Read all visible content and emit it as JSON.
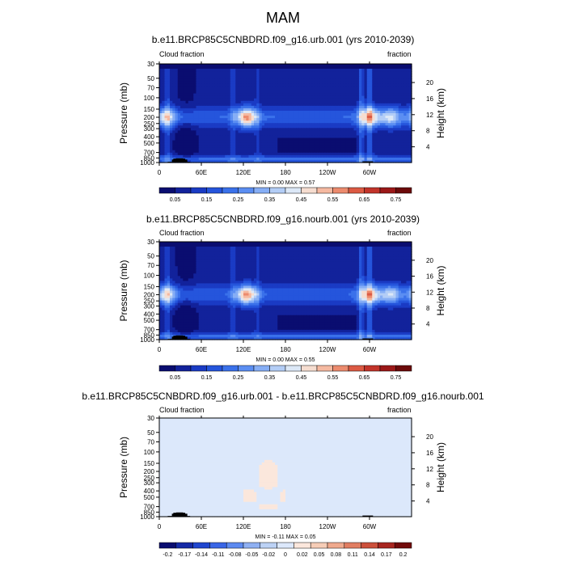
{
  "figure": {
    "title": "MAM"
  },
  "chart_data": [
    {
      "type": "heatmap",
      "title": "b.e11.BRCP85C5CNBDRD.f09_g16.urb.001 (yrs 2010-2039)",
      "left_label": "Cloud fraction",
      "right_label": "fraction",
      "ylabel": "Pressure (mb)",
      "ylabel_right": "Height (km)",
      "xlabel": "",
      "xticks": [
        "0",
        "60E",
        "120E",
        "180",
        "120W",
        "60W"
      ],
      "yticks": [
        "1000",
        "850",
        "700",
        "500",
        "400",
        "300",
        "250",
        "200",
        "150",
        "100",
        "70",
        "50",
        "30"
      ],
      "ylim": [
        1000,
        30
      ],
      "height_ticks": [
        "4",
        "8",
        "12",
        "16",
        "20"
      ],
      "stats": "MIN =   0.00  MAX =   0.57",
      "colorbar_labels": [
        "0.05",
        "0.15",
        "0.25",
        "0.35",
        "0.45",
        "0.55",
        "0.65",
        "0.75"
      ],
      "colorbar_range": [
        0,
        0.8
      ]
    },
    {
      "type": "heatmap",
      "title": "b.e11.BRCP85C5CNBDRD.f09_g16.nourb.001 (yrs 2010-2039)",
      "left_label": "Cloud fraction",
      "right_label": "fraction",
      "ylabel": "Pressure (mb)",
      "ylabel_right": "Height (km)",
      "xlabel": "",
      "xticks": [
        "0",
        "60E",
        "120E",
        "180",
        "120W",
        "60W"
      ],
      "yticks": [
        "1000",
        "850",
        "700",
        "500",
        "400",
        "300",
        "250",
        "200",
        "150",
        "100",
        "70",
        "50",
        "30"
      ],
      "ylim": [
        1000,
        30
      ],
      "height_ticks": [
        "4",
        "8",
        "12",
        "16",
        "20"
      ],
      "stats": "MIN =   0.00  MAX =   0.55",
      "colorbar_labels": [
        "0.05",
        "0.15",
        "0.25",
        "0.35",
        "0.45",
        "0.55",
        "0.65",
        "0.75"
      ],
      "colorbar_range": [
        0,
        0.8
      ]
    },
    {
      "type": "heatmap",
      "title": "b.e11.BRCP85C5CNBDRD.f09_g16.urb.001 - b.e11.BRCP85C5CNBDRD.f09_g16.nourb.001",
      "left_label": "Cloud fraction",
      "right_label": "fraction",
      "ylabel": "Pressure (mb)",
      "ylabel_right": "Height (km)",
      "xlabel": "",
      "xticks": [
        "0",
        "60E",
        "120E",
        "180",
        "120W",
        "60W"
      ],
      "yticks": [
        "1000",
        "850",
        "700",
        "500",
        "400",
        "300",
        "250",
        "200",
        "150",
        "100",
        "70",
        "50",
        "30"
      ],
      "ylim": [
        1000,
        30
      ],
      "height_ticks": [
        "4",
        "8",
        "12",
        "16",
        "20"
      ],
      "stats": "MIN =  -0.11  MAX =   0.05",
      "colorbar_labels": [
        "-0.2",
        "-0.17",
        "-0.14",
        "-0.11",
        "-0.08",
        "-0.05",
        "-0.02",
        "0",
        "0.02",
        "0.05",
        "0.08",
        "0.11",
        "0.14",
        "0.17",
        "0.2"
      ],
      "colorbar_range": [
        -0.2,
        0.2
      ]
    }
  ]
}
